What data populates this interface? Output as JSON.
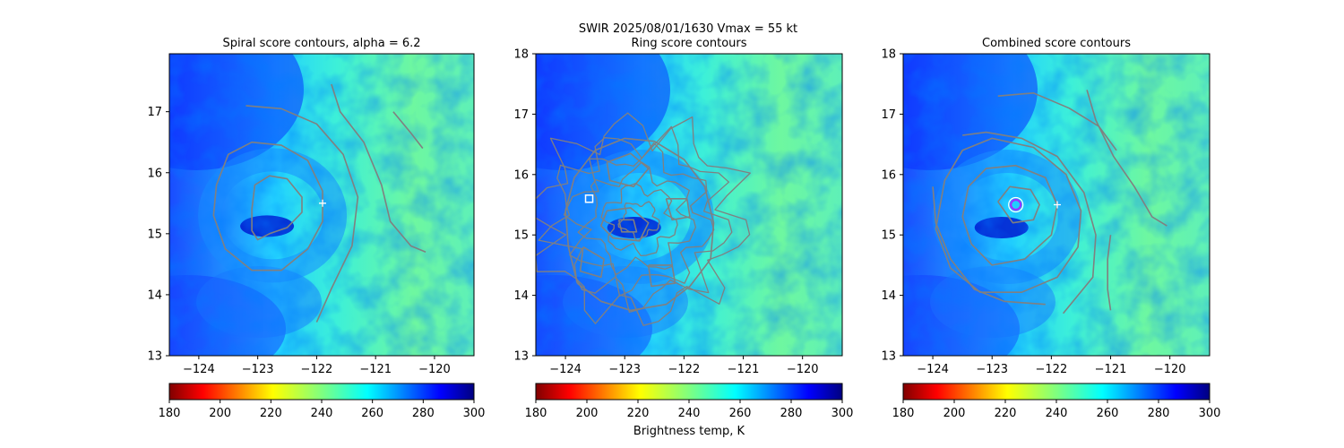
{
  "suptitle_line": "SWIR  2025/08/01/1630    Vmax = 55 kt",
  "colorbar_label": "Brightness temp, K",
  "chart_data": [
    {
      "type": "heatmap",
      "title": "Spiral score contours, alpha =  6.2",
      "xlim": [
        -124.5,
        -119.33
      ],
      "ylim": [
        13.0,
        17.95
      ],
      "xticks": [
        "-124",
        "-123",
        "-122",
        "-121",
        "-120"
      ],
      "yticks": [
        "13",
        "14",
        "15",
        "16",
        "17"
      ],
      "colorbar": {
        "cmap": "jet_r",
        "range": [
          180,
          300
        ],
        "ticks": [
          "180",
          "200",
          "220",
          "240",
          "260",
          "280",
          "300"
        ]
      },
      "contour_color": "#808080",
      "marker": {
        "symbol": "plus",
        "lon": -121.9,
        "lat": 15.5,
        "color": "#ffffff"
      },
      "contours": [
        [
          [
            -123.1,
            15.4
          ],
          [
            -123.05,
            15.8
          ],
          [
            -122.8,
            15.95
          ],
          [
            -122.5,
            15.9
          ],
          [
            -122.25,
            15.6
          ],
          [
            -122.25,
            15.35
          ],
          [
            -122.5,
            15.1
          ],
          [
            -122.8,
            15.0
          ],
          [
            -123.0,
            14.9
          ],
          [
            -123.1,
            15.05
          ],
          [
            -123.1,
            15.4
          ]
        ],
        [
          [
            -123.7,
            15.8
          ],
          [
            -123.5,
            16.3
          ],
          [
            -123.1,
            16.5
          ],
          [
            -122.6,
            16.45
          ],
          [
            -122.15,
            16.2
          ],
          [
            -121.9,
            15.7
          ],
          [
            -121.9,
            15.2
          ],
          [
            -122.15,
            14.75
          ],
          [
            -122.6,
            14.4
          ],
          [
            -123.1,
            14.4
          ],
          [
            -123.55,
            14.75
          ],
          [
            -123.75,
            15.3
          ],
          [
            -123.7,
            15.8
          ]
        ],
        [
          [
            -123.2,
            17.1
          ],
          [
            -122.6,
            17.05
          ],
          [
            -122.0,
            16.8
          ],
          [
            -121.55,
            16.3
          ],
          [
            -121.3,
            15.6
          ],
          [
            -121.4,
            14.8
          ],
          [
            -121.75,
            14.1
          ],
          [
            -122.0,
            13.55
          ]
        ],
        [
          [
            -121.75,
            17.45
          ],
          [
            -121.6,
            17.0
          ],
          [
            -121.2,
            16.5
          ],
          [
            -120.9,
            15.8
          ],
          [
            -120.75,
            15.2
          ],
          [
            -120.4,
            14.8
          ],
          [
            -120.15,
            14.7
          ]
        ],
        [
          [
            -120.7,
            17.0
          ],
          [
            -120.4,
            16.65
          ],
          [
            -120.2,
            16.4
          ]
        ]
      ]
    },
    {
      "type": "heatmap",
      "title": "Ring score contours",
      "xlim": [
        -124.5,
        -119.33
      ],
      "ylim": [
        13.0,
        18.0
      ],
      "xticks": [
        "-124",
        "-123",
        "-122",
        "-121",
        "-120"
      ],
      "yticks": [
        "13",
        "14",
        "15",
        "16",
        "17",
        "18"
      ],
      "colorbar": {
        "cmap": "jet_r",
        "range": [
          180,
          300
        ],
        "ticks": [
          "180",
          "200",
          "220",
          "240",
          "260",
          "280",
          "300"
        ]
      },
      "contour_color": "#808080",
      "marker": {
        "symbol": "square",
        "lon": -123.6,
        "lat": 15.6,
        "color": "#ffffff"
      },
      "contours": [
        [
          [
            -123.8,
            14.2
          ],
          [
            -123.4,
            13.9
          ],
          [
            -122.9,
            13.75
          ],
          [
            -122.3,
            13.85
          ],
          [
            -121.9,
            14.15
          ],
          [
            -121.55,
            14.6
          ],
          [
            -121.5,
            15.2
          ],
          [
            -121.65,
            15.8
          ],
          [
            -122.0,
            16.25
          ],
          [
            -122.5,
            16.55
          ],
          [
            -123.0,
            16.6
          ],
          [
            -123.5,
            16.4
          ],
          [
            -123.85,
            15.95
          ],
          [
            -124.0,
            15.4
          ],
          [
            -123.95,
            14.8
          ],
          [
            -123.8,
            14.2
          ]
        ],
        [
          [
            -123.3,
            15.4
          ],
          [
            -122.9,
            15.45
          ],
          [
            -122.6,
            15.2
          ],
          [
            -122.75,
            14.9
          ],
          [
            -123.2,
            14.95
          ],
          [
            -123.4,
            15.15
          ],
          [
            -123.3,
            15.4
          ]
        ],
        [
          [
            -123.1,
            15.25
          ],
          [
            -122.85,
            15.25
          ],
          [
            -122.8,
            15.05
          ],
          [
            -123.05,
            15.05
          ],
          [
            -123.1,
            15.25
          ]
        ],
        [
          [
            -123.3,
            16.2
          ],
          [
            -122.9,
            16.35
          ],
          [
            -122.6,
            16.1
          ],
          [
            -122.85,
            15.8
          ],
          [
            -123.25,
            15.9
          ],
          [
            -123.3,
            16.2
          ]
        ],
        [
          [
            -122.3,
            15.6
          ],
          [
            -121.95,
            15.6
          ],
          [
            -121.9,
            15.3
          ],
          [
            -122.2,
            15.25
          ],
          [
            -122.3,
            15.6
          ]
        ],
        [
          [
            -123.7,
            14.8
          ],
          [
            -123.35,
            14.6
          ],
          [
            -123.4,
            14.3
          ],
          [
            -123.75,
            14.4
          ],
          [
            -123.7,
            14.8
          ]
        ],
        [
          [
            -122.6,
            14.5
          ],
          [
            -122.2,
            14.5
          ],
          [
            -122.15,
            14.2
          ],
          [
            -122.55,
            14.15
          ],
          [
            -122.6,
            14.5
          ]
        ]
      ],
      "contour_detail": "dense"
    },
    {
      "type": "heatmap",
      "title": "Combined score contours",
      "xlim": [
        -124.5,
        -119.33
      ],
      "ylim": [
        13.0,
        18.0
      ],
      "xticks": [
        "-124",
        "-123",
        "-122",
        "-121",
        "-120"
      ],
      "yticks": [
        "13",
        "14",
        "15",
        "16",
        "17",
        "18"
      ],
      "colorbar": {
        "cmap": "jet_r",
        "range": [
          180,
          300
        ],
        "ticks": [
          "180",
          "200",
          "220",
          "240",
          "260",
          "280",
          "300"
        ]
      },
      "contour_color": "#808080",
      "marker": {
        "symbol": "plus",
        "lon": -121.9,
        "lat": 15.5,
        "color": "#ffffff"
      },
      "center_marker": {
        "symbol": "circle",
        "lon": -122.6,
        "lat": 15.5,
        "color": "#9b30ff"
      },
      "contours": [
        [
          [
            -122.9,
            15.55
          ],
          [
            -122.7,
            15.8
          ],
          [
            -122.35,
            15.75
          ],
          [
            -122.2,
            15.5
          ],
          [
            -122.3,
            15.25
          ],
          [
            -122.65,
            15.2
          ],
          [
            -122.9,
            15.55
          ]
        ],
        [
          [
            -123.4,
            15.8
          ],
          [
            -123.1,
            16.1
          ],
          [
            -122.6,
            16.15
          ],
          [
            -122.1,
            15.95
          ],
          [
            -121.9,
            15.5
          ],
          [
            -122.0,
            15.0
          ],
          [
            -122.45,
            14.6
          ],
          [
            -123.0,
            14.5
          ],
          [
            -123.35,
            14.85
          ],
          [
            -123.5,
            15.3
          ],
          [
            -123.4,
            15.8
          ]
        ],
        [
          [
            -123.8,
            15.9
          ],
          [
            -123.5,
            16.4
          ],
          [
            -123.0,
            16.6
          ],
          [
            -122.3,
            16.45
          ],
          [
            -121.75,
            16.0
          ],
          [
            -121.5,
            15.4
          ],
          [
            -121.55,
            14.8
          ],
          [
            -121.9,
            14.3
          ],
          [
            -122.5,
            14.05
          ],
          [
            -123.2,
            14.05
          ],
          [
            -123.7,
            14.45
          ],
          [
            -123.95,
            15.1
          ],
          [
            -123.8,
            15.9
          ]
        ],
        [
          [
            -123.5,
            16.65
          ],
          [
            -123.1,
            16.7
          ],
          [
            -122.5,
            16.6
          ],
          [
            -121.9,
            16.3
          ],
          [
            -121.45,
            15.7
          ],
          [
            -121.25,
            15.0
          ],
          [
            -121.3,
            14.3
          ],
          [
            -121.8,
            13.7
          ]
        ],
        [
          [
            -124.0,
            15.8
          ],
          [
            -123.95,
            15.2
          ],
          [
            -123.7,
            14.6
          ],
          [
            -123.3,
            14.1
          ],
          [
            -122.8,
            13.9
          ],
          [
            -122.1,
            13.85
          ]
        ],
        [
          [
            -122.9,
            17.3
          ],
          [
            -122.3,
            17.35
          ],
          [
            -121.7,
            17.1
          ],
          [
            -121.2,
            16.8
          ],
          [
            -120.9,
            16.4
          ]
        ],
        [
          [
            -121.4,
            17.4
          ],
          [
            -121.25,
            16.9
          ],
          [
            -120.95,
            16.3
          ],
          [
            -120.6,
            15.8
          ],
          [
            -120.3,
            15.3
          ],
          [
            -120.05,
            15.15
          ]
        ],
        [
          [
            -121.0,
            15.0
          ],
          [
            -121.05,
            14.6
          ],
          [
            -121.05,
            14.1
          ],
          [
            -121.0,
            13.75
          ]
        ]
      ]
    }
  ]
}
